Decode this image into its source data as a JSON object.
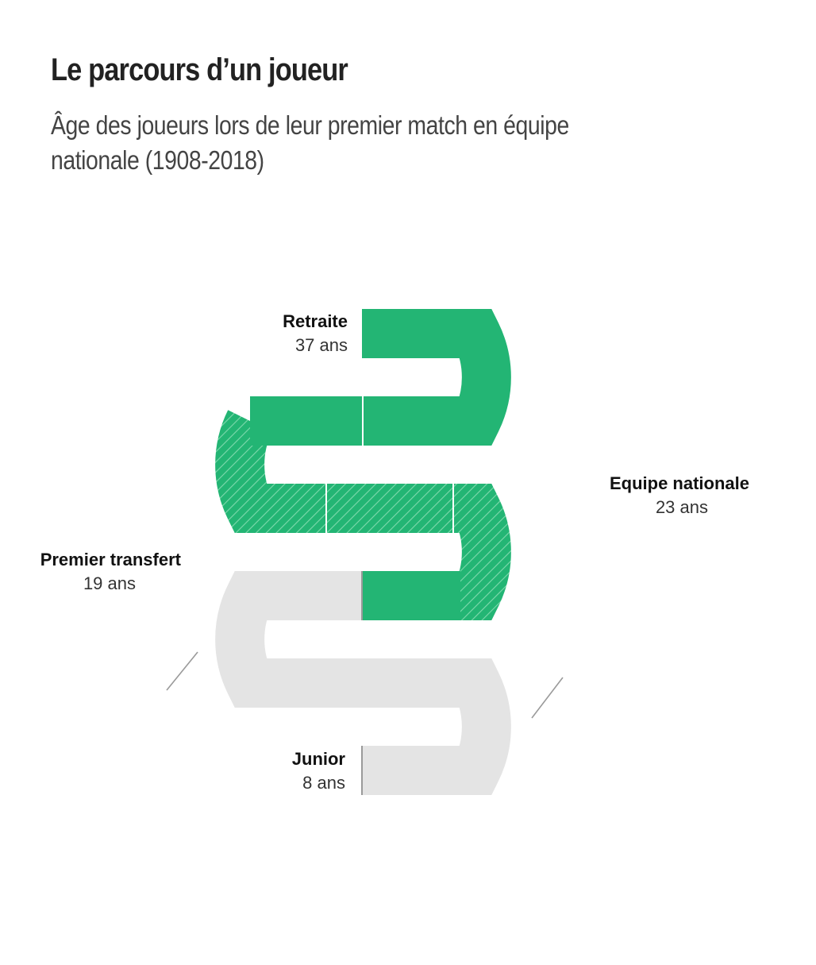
{
  "header": {
    "title": "Le parcours d’un joueur",
    "subtitle": "Âge des joueurs lors de leur premier match en équipe nationale (1908-2018)"
  },
  "milestones": [
    {
      "id": "retraite",
      "name": "Retraite",
      "age": "37 ans"
    },
    {
      "id": "equipe",
      "name": "Equipe nationale",
      "age": "23 ans"
    },
    {
      "id": "transfert",
      "name": "Premier transfert",
      "age": "19 ans"
    },
    {
      "id": "junior",
      "name": "Junior",
      "age": "8 ans"
    }
  ],
  "colors": {
    "active": "#23b574",
    "hatch_line": "#7fd9ad",
    "inactive": "#e4e4e4",
    "divider": "#ffffff",
    "tick": "#9a9a9a"
  }
}
